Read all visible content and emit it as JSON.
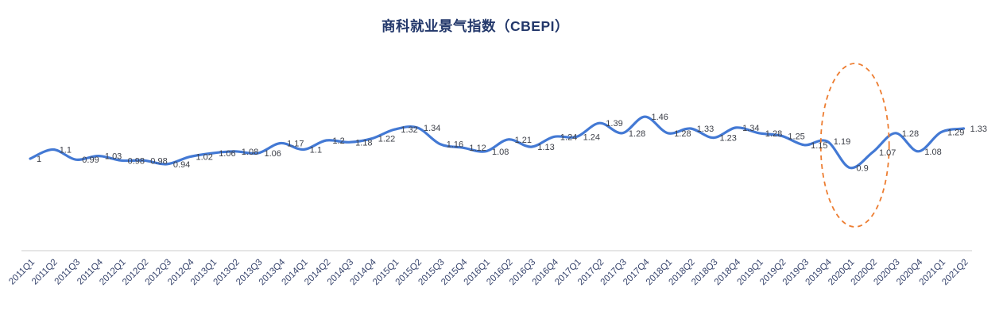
{
  "chart_data": {
    "type": "line",
    "smooth": true,
    "title": "商科就业景气指数（CBEPI）",
    "xlabel": "",
    "ylabel": "",
    "legend": "none",
    "grid": false,
    "ylim": [
      0,
      2.15
    ],
    "categories": [
      "2011Q1",
      "2011Q2",
      "2011Q3",
      "2011Q4",
      "2012Q1",
      "2012Q2",
      "2012Q3",
      "2012Q4",
      "2013Q1",
      "2013Q2",
      "2013Q3",
      "2013Q4",
      "2014Q1",
      "2014Q2",
      "2014Q3",
      "2014Q4",
      "2015Q1",
      "2015Q2",
      "2015Q3",
      "2015Q4",
      "2016Q1",
      "2016Q2",
      "2016Q3",
      "2016Q4",
      "2017Q1",
      "2017Q2",
      "2017Q3",
      "2017Q4",
      "2018Q1",
      "2018Q2",
      "2018Q3",
      "2018Q4",
      "2019Q1",
      "2019Q2",
      "2019Q3",
      "2019Q4",
      "2020Q1",
      "2020Q2",
      "2020Q3",
      "2020Q4",
      "2021Q1",
      "2021Q2"
    ],
    "values": [
      1,
      1.1,
      0.99,
      1.03,
      0.98,
      0.98,
      0.94,
      1.02,
      1.06,
      1.08,
      1.06,
      1.17,
      1.1,
      1.2,
      1.18,
      1.22,
      1.32,
      1.34,
      1.16,
      1.12,
      1.08,
      1.21,
      1.13,
      1.24,
      1.24,
      1.39,
      1.28,
      1.46,
      1.28,
      1.33,
      1.23,
      1.34,
      1.28,
      1.25,
      1.15,
      1.19,
      0.9,
      1.07,
      1.28,
      1.08,
      1.29,
      1.33
    ],
    "data_labels": [
      "1",
      "1.1",
      "0.99",
      "1.03",
      "0.98",
      "0.98",
      "0.94",
      "1.02",
      "1.06",
      "1.08",
      "1.06",
      "1.17",
      "1.1",
      "1.2",
      "1.18",
      "1.22",
      "1.32",
      "1.34",
      "1.16",
      "1.12",
      "1.08",
      "1.21",
      "1.13",
      "1.24",
      "1.24",
      "1.39",
      "1.28",
      "1.46",
      "1.28",
      "1.33",
      "1.23",
      "1.34",
      "1.28",
      "1.25",
      "1.15",
      "1.19",
      "0.9",
      "1.07",
      "1.28",
      "1.08",
      "1.29",
      "1.33"
    ],
    "annotation": {
      "type": "dashed-ellipse",
      "highlights": [
        "2020Q1",
        "2020Q2"
      ],
      "meaning": "covid-dip-highlight"
    }
  },
  "colors": {
    "line": "#4379D4",
    "title": "#23386B",
    "data_label": "#3D4049",
    "axis_label": "#39466E",
    "axis_line": "#D8D8D8",
    "annotation": "#ED7D31"
  }
}
